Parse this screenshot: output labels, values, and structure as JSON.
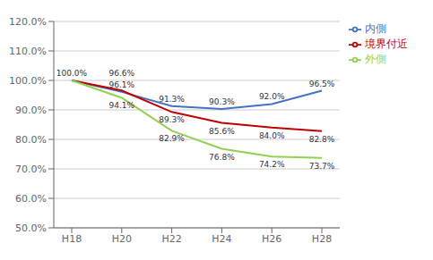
{
  "chart_data": {
    "type": "line",
    "categories": [
      "H18",
      "H20",
      "H22",
      "H24",
      "H26",
      "H28"
    ],
    "series": [
      {
        "name": "内側",
        "color": "#4472C4",
        "values": [
          1.0,
          0.961,
          0.913,
          0.903,
          0.92,
          0.965
        ],
        "value_labels": [
          "100.0%",
          "96.1%",
          "91.3%",
          "90.3%",
          "92.0%",
          "96.5%"
        ]
      },
      {
        "name": "境界付近",
        "color": "#C00000",
        "values": [
          1.0,
          0.966,
          0.893,
          0.856,
          0.84,
          0.828
        ],
        "value_labels": [
          null,
          "96.6%",
          "89.3%",
          "85.6%",
          "84.0%",
          "82.8%"
        ]
      },
      {
        "name": "外側",
        "color": "#92D050",
        "values": [
          1.0,
          0.941,
          0.829,
          0.768,
          0.742,
          0.737
        ],
        "value_labels": [
          null,
          "94.1%",
          "82.9%",
          "76.8%",
          "74.2%",
          "73.7%"
        ]
      }
    ],
    "ylim": [
      0.5,
      1.2
    ],
    "yticks": [
      {
        "value": 0.5,
        "label": "50.0%"
      },
      {
        "value": 0.6,
        "label": "60.0%"
      },
      {
        "value": 0.7,
        "label": "70.0%"
      },
      {
        "value": 0.8,
        "label": "80.0%"
      },
      {
        "value": 0.9,
        "label": "90.0%"
      },
      {
        "value": 1.0,
        "label": "100.0%"
      },
      {
        "value": 1.1,
        "label": "110.0%"
      },
      {
        "value": 1.2,
        "label": "120.0%"
      }
    ],
    "grid": true,
    "legend": "right",
    "data_labels": true
  }
}
